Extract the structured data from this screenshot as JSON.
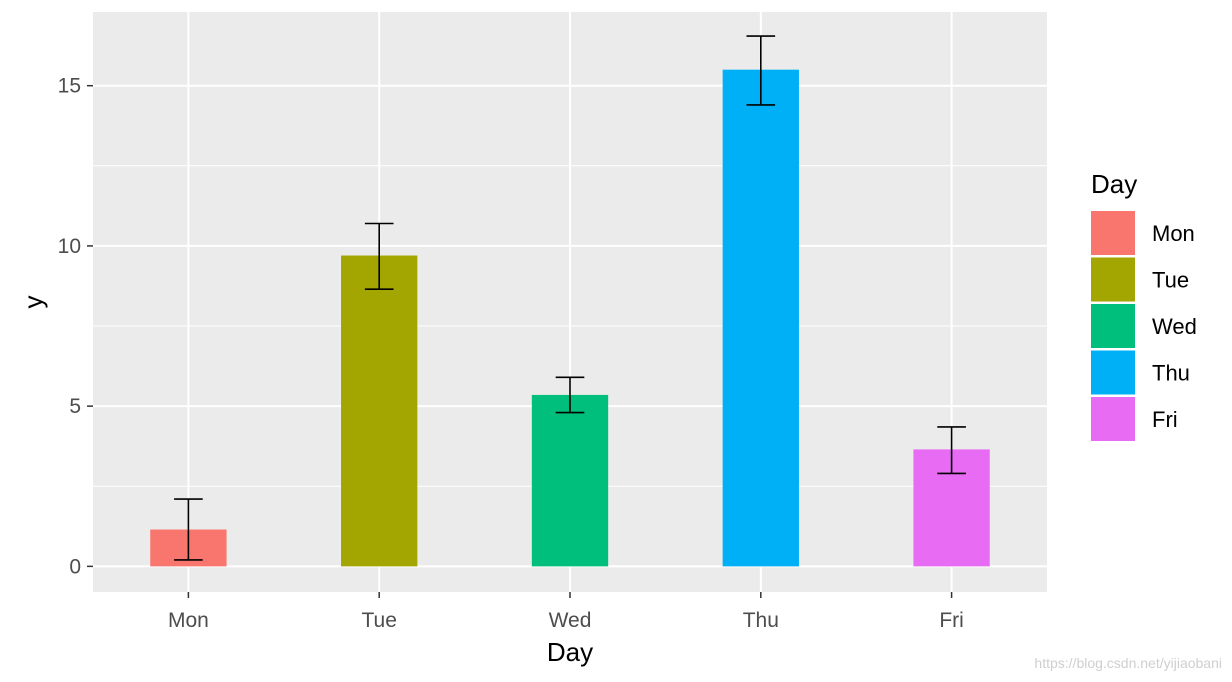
{
  "chart_data": {
    "type": "bar",
    "xlabel": "Day",
    "ylabel": "y",
    "categories": [
      "Mon",
      "Tue",
      "Wed",
      "Thu",
      "Fri"
    ],
    "values": [
      1.15,
      9.7,
      5.35,
      15.5,
      3.65
    ],
    "error_bars": [
      {
        "lower": 0.2,
        "upper": 2.1
      },
      {
        "lower": 8.65,
        "upper": 10.7
      },
      {
        "lower": 4.8,
        "upper": 5.9
      },
      {
        "lower": 14.4,
        "upper": 16.55
      },
      {
        "lower": 2.9,
        "upper": 4.35
      }
    ],
    "colors": [
      "#F8766D",
      "#A3A500",
      "#00BF7D",
      "#00B0F6",
      "#E76BF3"
    ],
    "ylim": [
      -0.8,
      17.3
    ],
    "yticks": [
      0,
      5,
      10,
      15
    ],
    "ytick_labels": [
      "0",
      "5",
      "10",
      "15"
    ],
    "grid": true,
    "legend": {
      "title": "Day",
      "position": "right",
      "entries": [
        "Mon",
        "Tue",
        "Wed",
        "Thu",
        "Fri"
      ]
    },
    "panel_background": "#EBEBEB",
    "grid_color": "#FFFFFF"
  },
  "watermark": "https://blog.csdn.net/yijiaobani"
}
